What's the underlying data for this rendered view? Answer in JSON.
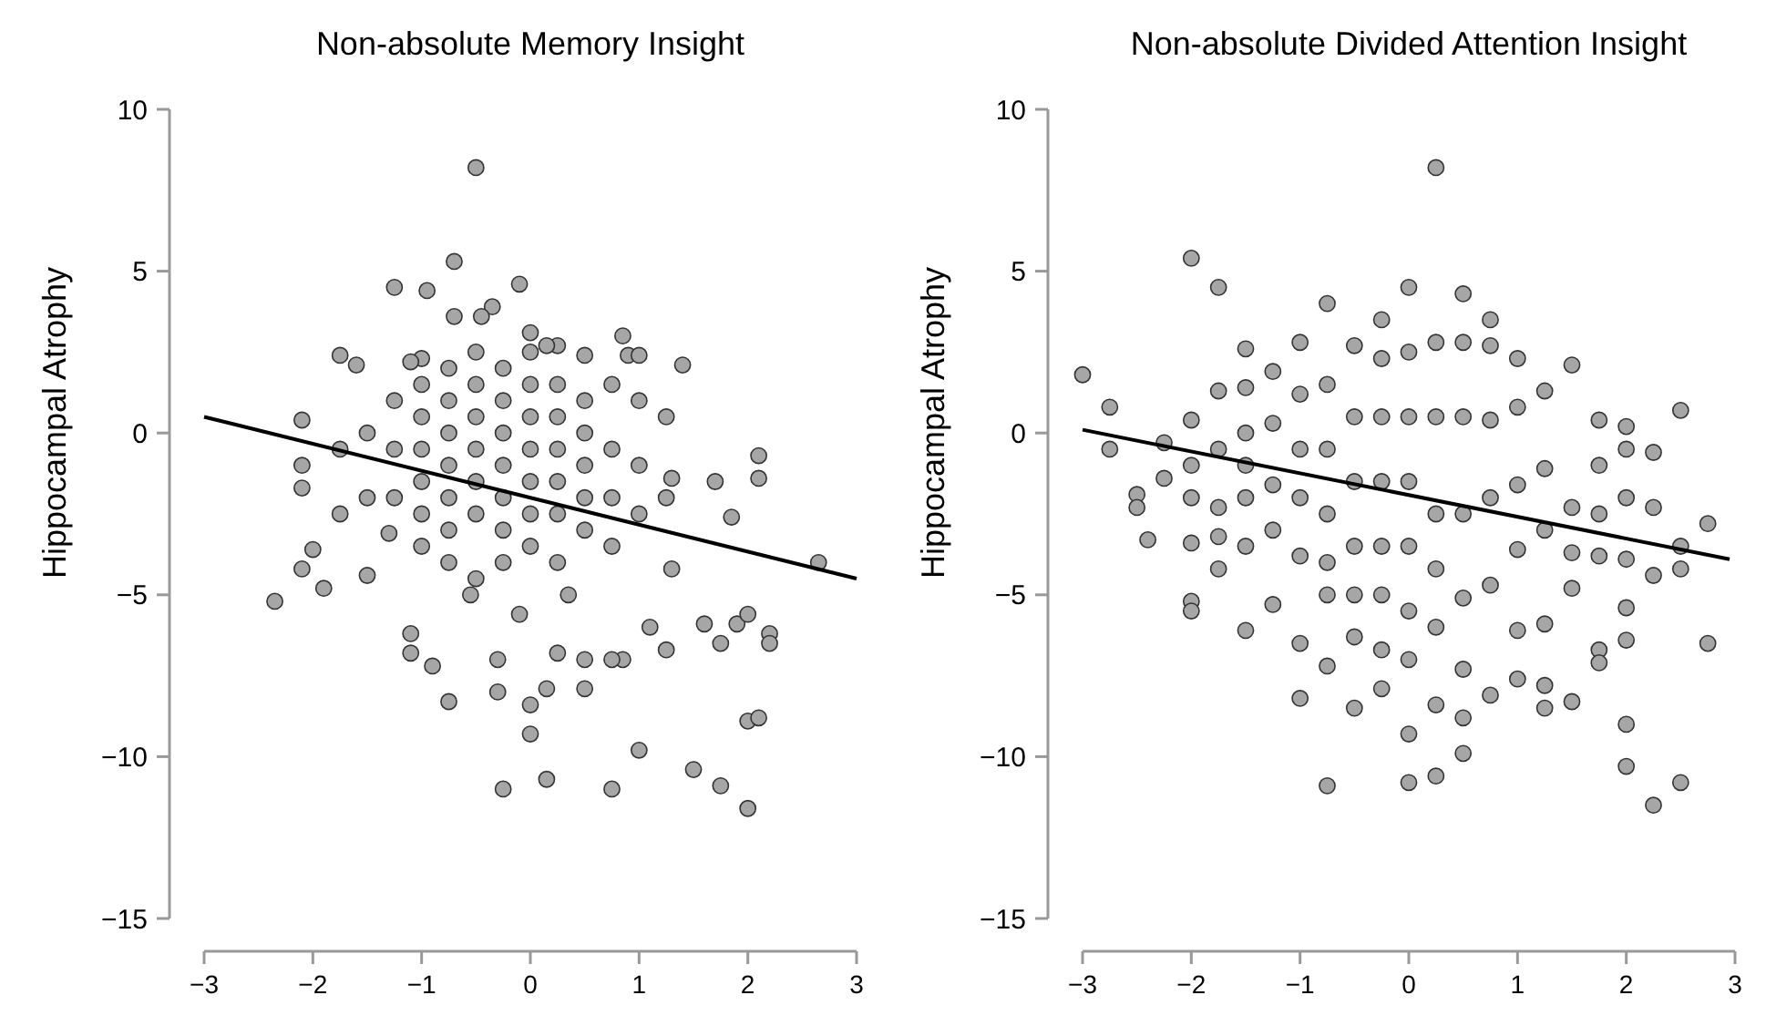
{
  "chart_data": [
    {
      "type": "scatter",
      "title": "Non-absolute Memory Insight",
      "ylabel": "Hippocampal Atrophy",
      "xlim": [
        -3,
        3
      ],
      "xticks": [
        -3,
        -2,
        -1,
        0,
        1,
        2,
        3
      ],
      "ylim": [
        -15,
        10
      ],
      "yticks": [
        -15,
        -10,
        -5,
        0,
        5,
        10
      ],
      "grid": false,
      "series": [
        {
          "marker": "circle",
          "color": "#a6a6a6",
          "x": [
            -0.5,
            -0.7,
            -1.25,
            -0.95,
            -0.1,
            -0.35,
            -0.45,
            -0.7,
            0,
            0.25,
            0.15,
            0.5,
            0.85,
            0.9,
            1.0,
            1.4,
            -1.75,
            -1.6,
            -1.0,
            -1.1,
            -2.35,
            -1.9,
            -2.1,
            -2.0,
            -2.1,
            -2.1,
            -2.1,
            -1.5,
            -1.3,
            -1.1,
            -1.1,
            -0.9,
            -0.75,
            -0.3,
            -0.3,
            0,
            0,
            0.15,
            -0.25,
            0.75,
            1.0,
            1.5,
            1.75,
            2.0,
            2.0,
            2.1,
            1.75,
            2.2,
            2.2,
            1.6,
            1.9,
            2.0,
            2.65,
            2.1,
            2.1,
            1.7,
            1.85,
            1.3,
            0.85,
            0.75,
            0.5,
            0.5,
            0.25,
            0.15,
            -0.55,
            -0.1,
            0.35,
            1.3,
            1.25,
            1.1,
            -1.0,
            -1.0,
            -1.0,
            -1.0,
            -1.0,
            -1.0,
            -0.75,
            -0.75,
            -0.75,
            -0.75,
            -0.75,
            -0.75,
            -0.75,
            -0.5,
            -0.5,
            -0.5,
            -0.5,
            -0.5,
            -0.5,
            -0.5,
            -0.25,
            -0.25,
            -0.25,
            -0.25,
            -0.25,
            -0.25,
            -0.25,
            0,
            0,
            0,
            0,
            0,
            0,
            0,
            0.25,
            0.25,
            0.25,
            0.25,
            0.25,
            0.25,
            0.5,
            0.5,
            0.5,
            0.5,
            0.5,
            0.75,
            0.75,
            0.75,
            0.75,
            1.0,
            1.0,
            1.0,
            1.25,
            1.25,
            -1.25,
            -1.25,
            -1.25,
            -1.5,
            -1.5,
            -1.75,
            -1.75
          ],
          "values": [
            8.2,
            5.3,
            4.5,
            4.4,
            4.6,
            3.9,
            3.6,
            3.6,
            3.1,
            2.7,
            2.7,
            2.4,
            3.0,
            2.4,
            2.4,
            2.1,
            2.4,
            2.1,
            2.3,
            2.2,
            -5.2,
            -4.8,
            -4.2,
            -3.6,
            -1.0,
            -1.7,
            0.4,
            -4.4,
            -3.1,
            -6.2,
            -6.8,
            -7.2,
            -8.3,
            -8.0,
            -7.0,
            -9.3,
            -8.4,
            -10.7,
            -11.0,
            -11.0,
            -9.8,
            -10.4,
            -10.9,
            -11.6,
            -8.9,
            -8.8,
            -6.5,
            -6.2,
            -6.5,
            -5.9,
            -5.9,
            -5.6,
            -4.0,
            -0.7,
            -1.4,
            -1.5,
            -2.6,
            -1.4,
            -7.0,
            -7.0,
            -7.9,
            -7.0,
            -6.8,
            -7.9,
            -5.0,
            -5.6,
            -5.0,
            -4.2,
            -6.7,
            -6.0,
            1.5,
            0.5,
            -0.5,
            -1.5,
            -2.5,
            -3.5,
            2.0,
            1.0,
            0,
            -1.0,
            -2.0,
            -3.0,
            -4.0,
            2.5,
            1.5,
            0.5,
            -0.5,
            -1.5,
            -2.5,
            -4.5,
            2.0,
            1.0,
            0,
            -1.0,
            -2.0,
            -3.0,
            -4.0,
            2.5,
            1.5,
            0.5,
            -0.5,
            -1.5,
            -2.5,
            -3.5,
            1.5,
            0.5,
            -0.5,
            -1.5,
            -2.5,
            -4.0,
            1.0,
            0,
            -1.0,
            -2.0,
            -3.0,
            1.5,
            -0.5,
            -2.0,
            -3.5,
            1.0,
            -1.0,
            -2.5,
            0.5,
            -2.0,
            1.0,
            -0.5,
            -2.0,
            0,
            -2.0,
            -0.5,
            -2.5
          ]
        },
        {
          "type": "line",
          "color": "#000000",
          "x": [
            -3,
            3
          ],
          "values": [
            0.5,
            -4.5
          ]
        }
      ]
    },
    {
      "type": "scatter",
      "title": "Non-absolute Divided Attention Insight",
      "ylabel": "Hippocampal Atrophy",
      "xlim": [
        -3,
        3
      ],
      "xticks": [
        -3,
        -2,
        -1,
        0,
        1,
        2,
        3
      ],
      "ylim": [
        -15,
        10
      ],
      "yticks": [
        -15,
        -10,
        -5,
        0,
        5,
        10
      ],
      "grid": false,
      "series": [
        {
          "marker": "circle",
          "color": "#a6a6a6",
          "x": [
            0.25,
            -2,
            -1.75,
            0,
            0.5,
            -0.75,
            -0.25,
            0.75,
            -3,
            -2.75,
            -2.75,
            -2.5,
            -2.5,
            -2.4,
            -2.25,
            -2.25,
            -2,
            -2,
            -2,
            -2,
            -2,
            -2,
            -1.75,
            -1.75,
            -1.75,
            -1.75,
            -1.5,
            -1.5,
            -1.5,
            -1.5,
            -1.5,
            -1.5,
            -1.25,
            -1.25,
            -1.25,
            -1,
            -1,
            -1,
            -1,
            -1,
            -0.75,
            -0.75,
            -0.75,
            -0.5,
            -0.5,
            -0.25,
            -0.25,
            0,
            0,
            0,
            0.25,
            0.25,
            0.5,
            0.5,
            0.5,
            0.75,
            1,
            1,
            1.25,
            1.25,
            1.5,
            1.5,
            1.75,
            1.75,
            2,
            2,
            2,
            2,
            2.25,
            2.5,
            2.5,
            2.5,
            2.5,
            2.75,
            2.75,
            2.25,
            2.25,
            2.25,
            2,
            2,
            2,
            2,
            1.75,
            1.75,
            1.75,
            1.75,
            1.5,
            1.5,
            1.5,
            1.25,
            1.25,
            1.25,
            1.25,
            1,
            1,
            1,
            1,
            0.75,
            0.75,
            0.75,
            0.75,
            0.5,
            0.5,
            0.5,
            0.5,
            0.25,
            0.25,
            0.25,
            0.25,
            0.25,
            0,
            0,
            0,
            0,
            0,
            -0.25,
            -0.25,
            -0.25,
            -0.25,
            -0.25,
            -0.5,
            -0.5,
            -0.5,
            -0.5,
            -0.5,
            -0.75,
            -0.75,
            -0.75,
            -0.75,
            -1,
            -1,
            -1.25,
            -1.25,
            -1.5,
            -1.75
          ],
          "values": [
            8.2,
            5.4,
            4.5,
            4.5,
            4.3,
            4.0,
            3.5,
            3.5,
            1.8,
            0.8,
            -0.5,
            -1.9,
            -2.3,
            -3.3,
            -0.3,
            -1.4,
            0.4,
            -1.0,
            -2.0,
            -3.4,
            -5.2,
            -5.5,
            1.3,
            -0.5,
            -2.3,
            -4.2,
            2.6,
            1.4,
            0,
            -2.0,
            -3.5,
            -6.1,
            1.9,
            -1.6,
            -5.3,
            2.8,
            -0.5,
            -3.8,
            -6.5,
            -8.2,
            -5.0,
            -7.2,
            -10.9,
            -6.3,
            -8.5,
            -6.7,
            -7.9,
            -7.0,
            -9.3,
            -10.8,
            -10.6,
            -8.4,
            -8.8,
            -9.9,
            -7.3,
            -8.1,
            -7.6,
            -6.1,
            -8.5,
            -7.8,
            -8.3,
            -4.8,
            -6.7,
            -7.1,
            -9.0,
            -10.3,
            -6.4,
            -5.4,
            -11.5,
            -10.8,
            -4.2,
            -3.5,
            0.7,
            -2.8,
            -6.5,
            -0.6,
            -2.3,
            -4.4,
            0.2,
            -0.5,
            -2.0,
            -3.9,
            0.4,
            -1.0,
            -2.5,
            -3.8,
            2.1,
            -2.3,
            -3.7,
            1.3,
            -1.1,
            -3.0,
            -5.9,
            2.3,
            0.8,
            -1.6,
            -3.6,
            2.7,
            0.4,
            -2.0,
            -4.7,
            2.8,
            0.5,
            -2.5,
            -5.1,
            2.8,
            0.5,
            -2.5,
            -4.2,
            -6.0,
            2.5,
            0.5,
            -1.5,
            -3.5,
            -5.5,
            2.3,
            0.5,
            -1.5,
            -3.5,
            -5.0,
            2.7,
            0.5,
            -1.5,
            -3.5,
            -5.0,
            1.5,
            -0.5,
            -2.5,
            -4.0,
            1.2,
            -2.0,
            0.3,
            -3.0,
            -1.0,
            -3.2
          ]
        },
        {
          "type": "line",
          "color": "#000000",
          "x": [
            -3,
            2.95
          ],
          "values": [
            0.1,
            -3.9
          ]
        }
      ]
    }
  ]
}
